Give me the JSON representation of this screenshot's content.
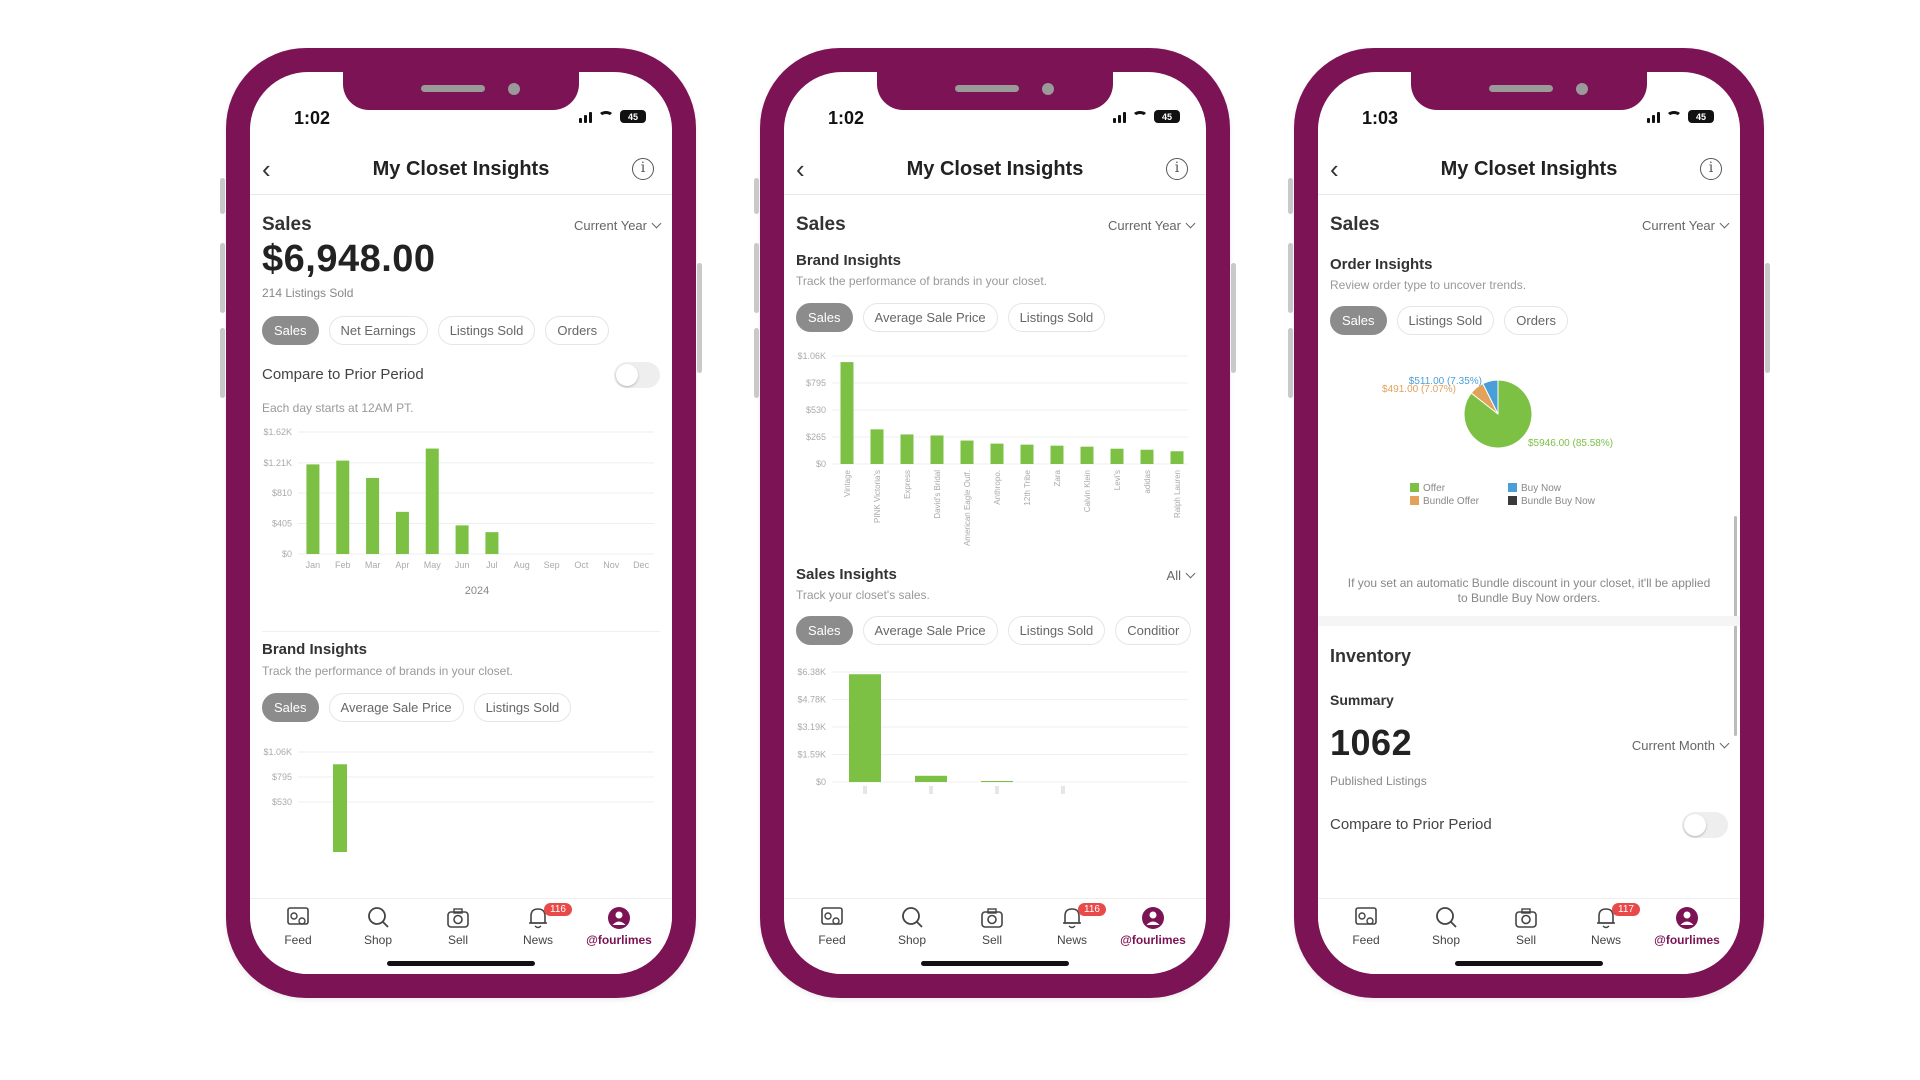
{
  "colors": {
    "phone_frame": "#7b1355",
    "bar_green": "#7cc044",
    "badge_red": "#e84a4a",
    "pill_active": "#8c8c8c"
  },
  "phones": [
    {
      "status_time": "1:02",
      "battery": "45",
      "header_title": "My Closet Insights",
      "sales": {
        "label": "Sales",
        "period": "Current Year",
        "amount": "$6,948.00",
        "listings_sold": "214 Listings Sold",
        "tabs": [
          "Sales",
          "Net Earnings",
          "Listings Sold",
          "Orders"
        ],
        "compare_label": "Compare to Prior Period",
        "compare_on": false,
        "note": "Each day starts at 12AM PT."
      },
      "brand_insights": {
        "title": "Brand Insights",
        "desc": "Track the performance of brands in your closet.",
        "tabs": [
          "Sales",
          "Average Sale Price",
          "Listings Sold"
        ]
      },
      "tabbar": {
        "feed": "Feed",
        "shop": "Shop",
        "sell": "Sell",
        "news": "News",
        "news_badge": "116",
        "me": "@fourlimes"
      }
    },
    {
      "status_time": "1:02",
      "battery": "45",
      "header_title": "My Closet Insights",
      "sales_label": "Sales",
      "period": "Current Year",
      "brand_insights": {
        "title": "Brand Insights",
        "desc": "Track the performance of brands in your closet.",
        "tabs": [
          "Sales",
          "Average Sale Price",
          "Listings Sold"
        ]
      },
      "sales_insights": {
        "title": "Sales Insights",
        "filter": "All",
        "desc": "Track your closet's sales.",
        "tabs": [
          "Sales",
          "Average Sale Price",
          "Listings Sold",
          "Conditior"
        ]
      },
      "tabbar": {
        "feed": "Feed",
        "shop": "Shop",
        "sell": "Sell",
        "news": "News",
        "news_badge": "116",
        "me": "@fourlimes"
      }
    },
    {
      "status_time": "1:03",
      "battery": "45",
      "header_title": "My Closet Insights",
      "sales_label": "Sales",
      "period": "Current Year",
      "order_insights": {
        "title": "Order Insights",
        "desc": "Review order type to uncover trends.",
        "tabs": [
          "Sales",
          "Listings Sold",
          "Orders"
        ],
        "note": "If you set an automatic Bundle discount in your closet, it'll be applied to Bundle Buy Now orders."
      },
      "inventory": {
        "title": "Inventory",
        "summary": "Summary",
        "count": "1062",
        "count_label": "Published Listings",
        "period": "Current Month",
        "compare_label": "Compare to Prior Period"
      },
      "tabbar": {
        "feed": "Feed",
        "shop": "Shop",
        "sell": "Sell",
        "news": "News",
        "news_badge": "117",
        "me": "@fourlimes"
      }
    }
  ],
  "chart_data": [
    {
      "type": "bar",
      "title": "",
      "categories": [
        "Jan",
        "Feb",
        "Mar",
        "Apr",
        "May",
        "Jun",
        "Jul",
        "Aug",
        "Sep",
        "Oct",
        "Nov",
        "Dec"
      ],
      "values": [
        1190,
        1240,
        1010,
        560,
        1400,
        380,
        290,
        0,
        0,
        0,
        0,
        0
      ],
      "xlabel": "2024",
      "ylabel": "",
      "yticks": [
        "$0",
        "$405",
        "$810",
        "$1.21K",
        "$1.62K"
      ],
      "ylim": [
        0,
        1620
      ],
      "grid": true
    },
    {
      "type": "bar",
      "title": "",
      "categories": [
        ""
      ],
      "values": [
        930
      ],
      "yticks": [
        "$530",
        "$795",
        "$1.06K"
      ],
      "ylim": [
        0,
        1060
      ],
      "grid": true
    },
    {
      "type": "bar",
      "title": "",
      "categories": [
        "Vintage",
        "PINK Victoria's",
        "Express",
        "David's Bridal",
        "American Eagle Outf.",
        "Anthropo.",
        "12th Tribe",
        "Zara",
        "Calvin Klein",
        "Levi's",
        "adidas",
        "Ralph Lauren"
      ],
      "values": [
        1000,
        340,
        290,
        280,
        230,
        200,
        190,
        180,
        170,
        150,
        140,
        125
      ],
      "yticks": [
        "$0",
        "$265",
        "$530",
        "$795",
        "$1.06K"
      ],
      "ylim": [
        0,
        1060
      ],
      "grid": true
    },
    {
      "type": "bar",
      "title": "",
      "categories": [
        "",
        "",
        "",
        ""
      ],
      "values": [
        6250,
        360,
        60,
        0
      ],
      "yticks": [
        "$0",
        "$1.59K",
        "$3.19K",
        "$4.78K",
        "$6.38K"
      ],
      "ylim": [
        0,
        6380
      ],
      "grid": true
    },
    {
      "type": "pie",
      "title": "",
      "slices": [
        {
          "name": "Offer",
          "value": 85.58,
          "label": "$5946.00 (85.58%)",
          "color": "#7cc044"
        },
        {
          "name": "Bundle Offer",
          "value": 7.07,
          "label": "$491.00 (7.07%)",
          "color": "#e2a25a"
        },
        {
          "name": "Buy Now",
          "value": 7.35,
          "label": "$511.00 (7.35%)",
          "color": "#4a9fd8"
        },
        {
          "name": "Bundle Buy Now",
          "value": 0,
          "label": "",
          "color": "#3a3a3a"
        }
      ],
      "legend": [
        "Offer",
        "Buy Now",
        "Bundle Offer",
        "Bundle Buy Now"
      ]
    }
  ]
}
